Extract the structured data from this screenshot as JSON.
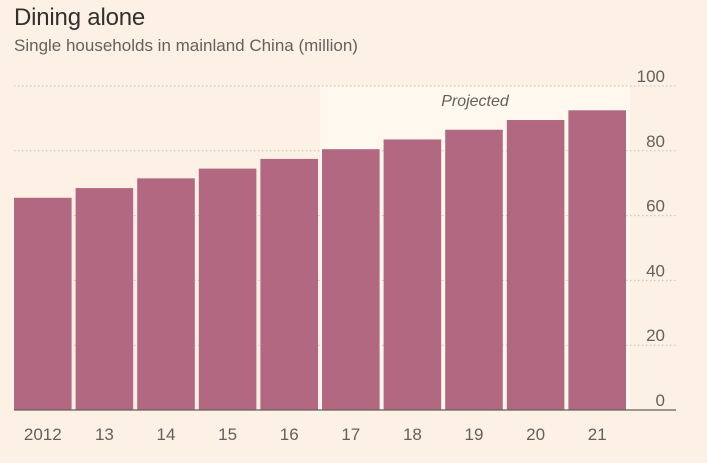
{
  "header": {
    "title": "Dining alone",
    "subtitle": "Single households in mainland China (million)"
  },
  "colors": {
    "background": "#fdf1e5",
    "bar": "#b36882",
    "projected_shade": "#fef8ee",
    "grid": "#c9beb4",
    "axis": "#66605c"
  },
  "chart_data": {
    "type": "bar",
    "title": "Dining alone",
    "subtitle": "Single households in mainland China (million)",
    "categories": [
      "2012",
      "13",
      "14",
      "15",
      "16",
      "17",
      "18",
      "19",
      "20",
      "21"
    ],
    "values": [
      65.5,
      68.5,
      71.5,
      74.5,
      77.5,
      80.5,
      83.5,
      86.5,
      89.5,
      92.5
    ],
    "ylim": [
      0,
      100
    ],
    "yticks": [
      0,
      20,
      40,
      60,
      80,
      100
    ],
    "yaxis_position": "right",
    "grid": true,
    "projected": {
      "label": "Projected",
      "from_category": "17",
      "to_category": "21"
    }
  }
}
